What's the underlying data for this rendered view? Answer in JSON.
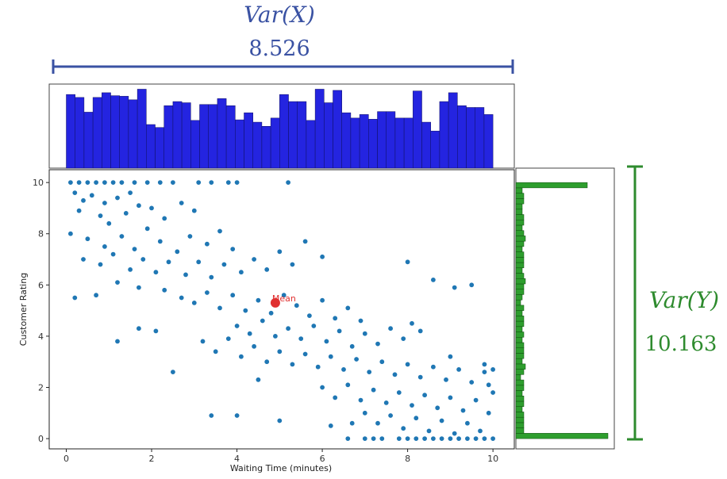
{
  "annotations": {
    "var_x_label": "Var(X)",
    "var_x_value": "8.526",
    "var_y_label": "Var(Y)",
    "var_y_value": "10.163",
    "var_x_color": "#3a52a3",
    "var_y_color": "#2e8b2e"
  },
  "chart_data": [
    {
      "type": "scatter",
      "xlabel": "Waiting Time (minutes)",
      "ylabel": "Customer Rating",
      "xlim": [
        -0.4,
        10.5
      ],
      "ylim": [
        -0.4,
        10.5
      ],
      "xticks": [
        0,
        2,
        4,
        6,
        8,
        10
      ],
      "yticks": [
        0,
        2,
        4,
        6,
        8,
        10
      ],
      "point_color": "#1f77b4",
      "mean": {
        "label": "Mean",
        "x": 4.9,
        "y": 5.3,
        "color": "#e03030"
      },
      "points_note": "",
      "points": [
        [
          0.1,
          10
        ],
        [
          0.3,
          10
        ],
        [
          0.5,
          10
        ],
        [
          0.7,
          10
        ],
        [
          0.9,
          10
        ],
        [
          1.1,
          10
        ],
        [
          1.3,
          10
        ],
        [
          1.6,
          10
        ],
        [
          1.9,
          10
        ],
        [
          2.2,
          10
        ],
        [
          2.5,
          10
        ],
        [
          3.1,
          10
        ],
        [
          3.4,
          10
        ],
        [
          3.8,
          10
        ],
        [
          4.0,
          10
        ],
        [
          5.2,
          10
        ],
        [
          0.2,
          9.6
        ],
        [
          0.4,
          9.3
        ],
        [
          0.6,
          9.5
        ],
        [
          0.9,
          9.2
        ],
        [
          1.2,
          9.4
        ],
        [
          1.5,
          9.6
        ],
        [
          1.7,
          9.1
        ],
        [
          0.3,
          8.9
        ],
        [
          0.8,
          8.7
        ],
        [
          1.0,
          8.4
        ],
        [
          1.4,
          8.8
        ],
        [
          2.0,
          9.0
        ],
        [
          2.3,
          8.6
        ],
        [
          2.7,
          9.2
        ],
        [
          3.0,
          8.9
        ],
        [
          0.1,
          8.0
        ],
        [
          0.5,
          7.8
        ],
        [
          0.9,
          7.5
        ],
        [
          1.3,
          7.9
        ],
        [
          1.6,
          7.4
        ],
        [
          1.9,
          8.2
        ],
        [
          2.2,
          7.7
        ],
        [
          2.6,
          7.3
        ],
        [
          2.9,
          7.9
        ],
        [
          3.3,
          7.6
        ],
        [
          3.6,
          8.1
        ],
        [
          3.9,
          7.4
        ],
        [
          0.4,
          7.0
        ],
        [
          0.8,
          6.8
        ],
        [
          1.1,
          7.2
        ],
        [
          1.5,
          6.6
        ],
        [
          1.8,
          7.0
        ],
        [
          2.1,
          6.5
        ],
        [
          2.4,
          6.9
        ],
        [
          2.8,
          6.4
        ],
        [
          3.1,
          6.9
        ],
        [
          3.4,
          6.3
        ],
        [
          3.7,
          6.8
        ],
        [
          4.1,
          6.5
        ],
        [
          4.4,
          7.0
        ],
        [
          4.7,
          6.6
        ],
        [
          5.0,
          7.3
        ],
        [
          5.3,
          6.8
        ],
        [
          5.6,
          7.7
        ],
        [
          6.0,
          7.1
        ],
        [
          0.2,
          5.5
        ],
        [
          0.7,
          5.6
        ],
        [
          1.2,
          6.1
        ],
        [
          1.7,
          5.9
        ],
        [
          2.3,
          5.8
        ],
        [
          2.7,
          5.5
        ],
        [
          3.0,
          5.3
        ],
        [
          3.3,
          5.7
        ],
        [
          3.6,
          5.1
        ],
        [
          3.9,
          5.6
        ],
        [
          4.2,
          5.0
        ],
        [
          4.5,
          5.4
        ],
        [
          4.8,
          4.9
        ],
        [
          5.1,
          5.6
        ],
        [
          5.4,
          5.2
        ],
        [
          5.7,
          4.8
        ],
        [
          6.0,
          5.4
        ],
        [
          6.3,
          4.7
        ],
        [
          6.6,
          5.1
        ],
        [
          6.9,
          4.6
        ],
        [
          4.0,
          4.4
        ],
        [
          4.3,
          4.1
        ],
        [
          4.6,
          4.6
        ],
        [
          4.9,
          4.0
        ],
        [
          5.2,
          4.3
        ],
        [
          5.5,
          3.9
        ],
        [
          5.8,
          4.4
        ],
        [
          6.1,
          3.8
        ],
        [
          6.4,
          4.2
        ],
        [
          6.7,
          3.6
        ],
        [
          7.0,
          4.1
        ],
        [
          7.3,
          3.7
        ],
        [
          7.6,
          4.3
        ],
        [
          7.9,
          3.9
        ],
        [
          8.1,
          4.5
        ],
        [
          3.2,
          3.8
        ],
        [
          3.5,
          3.4
        ],
        [
          3.8,
          3.9
        ],
        [
          4.1,
          3.2
        ],
        [
          4.4,
          3.6
        ],
        [
          4.7,
          3.0
        ],
        [
          5.0,
          3.4
        ],
        [
          5.3,
          2.9
        ],
        [
          5.6,
          3.3
        ],
        [
          5.9,
          2.8
        ],
        [
          6.2,
          3.2
        ],
        [
          6.5,
          2.7
        ],
        [
          6.8,
          3.1
        ],
        [
          7.1,
          2.6
        ],
        [
          7.4,
          3.0
        ],
        [
          7.7,
          2.5
        ],
        [
          8.0,
          2.9
        ],
        [
          8.3,
          2.4
        ],
        [
          8.6,
          2.8
        ],
        [
          8.9,
          2.3
        ],
        [
          9.2,
          2.7
        ],
        [
          9.5,
          2.2
        ],
        [
          9.8,
          2.6
        ],
        [
          2.5,
          2.6
        ],
        [
          4.5,
          2.3
        ],
        [
          6.0,
          2.0
        ],
        [
          6.3,
          1.6
        ],
        [
          6.6,
          2.1
        ],
        [
          6.9,
          1.5
        ],
        [
          7.2,
          1.9
        ],
        [
          7.5,
          1.4
        ],
        [
          7.8,
          1.8
        ],
        [
          8.1,
          1.3
        ],
        [
          8.4,
          1.7
        ],
        [
          8.7,
          1.2
        ],
        [
          9.0,
          1.6
        ],
        [
          9.3,
          1.1
        ],
        [
          9.6,
          1.5
        ],
        [
          9.9,
          1.0
        ],
        [
          7.0,
          1.0
        ],
        [
          7.3,
          0.6
        ],
        [
          7.6,
          0.9
        ],
        [
          7.9,
          0.4
        ],
        [
          8.2,
          0.8
        ],
        [
          8.5,
          0.3
        ],
        [
          8.8,
          0.7
        ],
        [
          9.1,
          0.2
        ],
        [
          9.4,
          0.6
        ],
        [
          9.7,
          0.3
        ],
        [
          3.4,
          0.9
        ],
        [
          4.0,
          0.9
        ],
        [
          5.0,
          0.7
        ],
        [
          6.2,
          0.5
        ],
        [
          6.7,
          0.6
        ],
        [
          6.6,
          0
        ],
        [
          7.0,
          0
        ],
        [
          7.2,
          0
        ],
        [
          7.4,
          0
        ],
        [
          7.8,
          0
        ],
        [
          8.0,
          0
        ],
        [
          8.2,
          0
        ],
        [
          8.4,
          0
        ],
        [
          8.6,
          0
        ],
        [
          8.8,
          0
        ],
        [
          9.0,
          0
        ],
        [
          9.2,
          0
        ],
        [
          9.4,
          0
        ],
        [
          9.6,
          0
        ],
        [
          9.8,
          0
        ],
        [
          10.0,
          0
        ],
        [
          8.0,
          6.9
        ],
        [
          8.6,
          6.2
        ],
        [
          9.1,
          5.9
        ],
        [
          9.5,
          6.0
        ],
        [
          1.2,
          3.8
        ],
        [
          1.7,
          4.3
        ],
        [
          2.1,
          4.2
        ],
        [
          8.3,
          4.2
        ],
        [
          9.0,
          3.2
        ],
        [
          9.8,
          2.9
        ],
        [
          10.0,
          2.7
        ],
        [
          10.0,
          1.8
        ],
        [
          9.9,
          2.1
        ]
      ]
    },
    {
      "type": "bar",
      "orientation": "vertical",
      "bar_color": "#2424e0",
      "xlim": [
        -0.4,
        10.5
      ],
      "ylim": [
        0,
        14
      ],
      "values": [
        12.5,
        12,
        9.5,
        12,
        12.8,
        12.3,
        12.2,
        11.6,
        13.4,
        7.4,
        6.9,
        10.6,
        11.3,
        11.1,
        8.1,
        10.8,
        10.8,
        11.8,
        10.6,
        8.2,
        9.4,
        7.8,
        7.1,
        8.5,
        12.5,
        11.3,
        11.3,
        8.1,
        13.4,
        11.1,
        13.2,
        9.4,
        8.5,
        9.1,
        8.3,
        9.6,
        9.6,
        8.5,
        8.5,
        13.1,
        7.8,
        6.3,
        11.3,
        12.8,
        10.6,
        10.3,
        10.3,
        9.1
      ]
    },
    {
      "type": "bar",
      "orientation": "horizontal",
      "bar_color": "#2e9e2e",
      "ylim": [
        -0.4,
        10.5
      ],
      "xlim": [
        0,
        60
      ],
      "values": [
        58,
        5,
        5,
        5,
        5,
        4,
        5,
        5,
        4,
        5,
        5,
        3,
        5,
        6,
        4,
        5,
        5,
        5,
        4,
        5,
        4,
        5,
        5,
        4,
        5,
        3,
        4,
        5,
        5,
        6,
        5,
        4,
        5,
        5,
        5,
        4,
        5,
        6,
        5,
        4,
        5,
        5,
        4,
        4,
        5,
        5,
        4,
        45
      ]
    }
  ]
}
